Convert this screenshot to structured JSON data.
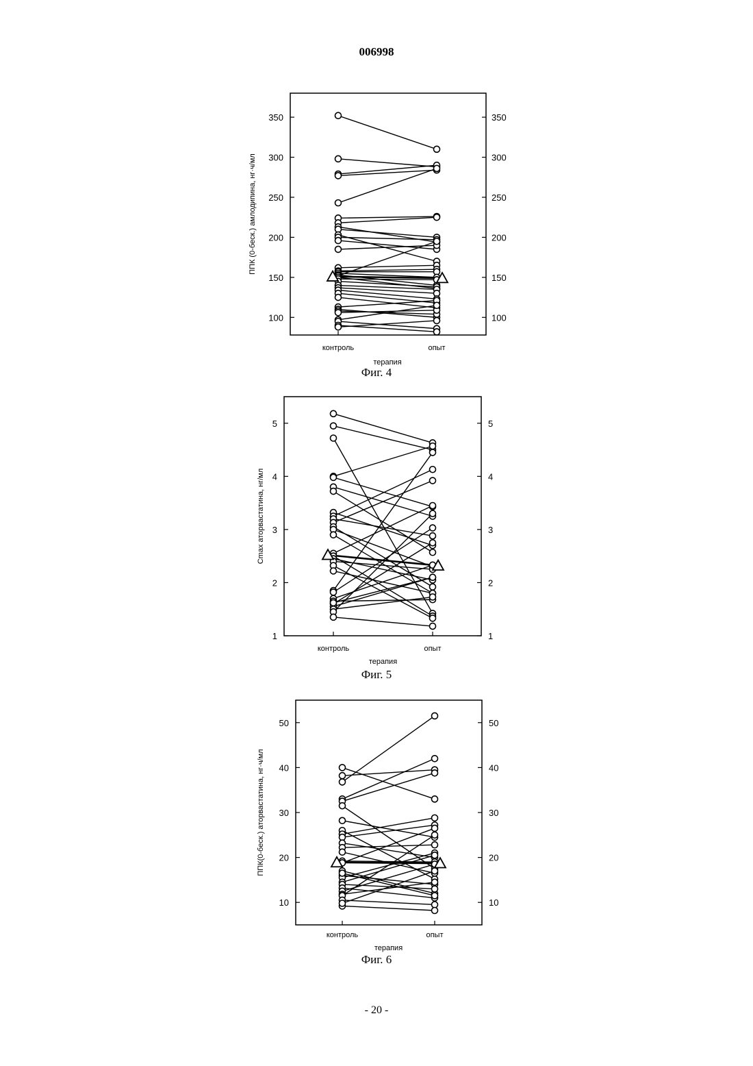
{
  "header": {
    "doc_number": "006998"
  },
  "footer": {
    "page_label": "- 20 -"
  },
  "figures": [
    {
      "caption": "Фиг. 4"
    },
    {
      "caption": "Фиг. 5"
    },
    {
      "caption": "Фиг. 6"
    }
  ],
  "chart_data": [
    {
      "type": "line",
      "title": "",
      "xlabel": "терапия",
      "ylabel": "ППК (0-беск.) амлодипина, нг·ч/мл",
      "categories": [
        "контроль",
        "опыт"
      ],
      "ylim": [
        78,
        380
      ],
      "yticks": [
        100,
        150,
        200,
        250,
        300,
        350
      ],
      "grid": false,
      "series_style": "paired individual lines with circle markers; group mean shown with triangle markers",
      "pairs": [
        [
          352,
          310
        ],
        [
          298,
          288
        ],
        [
          279,
          290
        ],
        [
          277,
          284
        ],
        [
          243,
          286
        ],
        [
          224,
          226
        ],
        [
          218,
          225
        ],
        [
          213,
          194
        ],
        [
          210,
          200
        ],
        [
          203,
          170
        ],
        [
          200,
          197
        ],
        [
          196,
          185
        ],
        [
          185,
          190
        ],
        [
          162,
          165
        ],
        [
          158,
          160
        ],
        [
          157,
          157
        ],
        [
          155,
          150
        ],
        [
          153,
          140
        ],
        [
          152,
          195
        ],
        [
          150,
          136
        ],
        [
          148,
          147
        ],
        [
          145,
          138
        ],
        [
          140,
          135
        ],
        [
          137,
          130
        ],
        [
          134,
          123
        ],
        [
          130,
          118
        ],
        [
          125,
          112
        ],
        [
          113,
          121
        ],
        [
          110,
          100
        ],
        [
          108,
          104
        ],
        [
          106,
          109
        ],
        [
          97,
          115
        ],
        [
          95,
          86
        ],
        [
          90,
          82
        ],
        [
          88,
          96
        ]
      ],
      "mean": [
        151,
        149
      ]
    },
    {
      "type": "line",
      "title": "",
      "xlabel": "терапия",
      "ylabel": "Cmax аторвастатина, нг/мл",
      "categories": [
        "контроль",
        "опыт"
      ],
      "ylim": [
        1,
        5.5
      ],
      "yticks": [
        1,
        2,
        3,
        4,
        5
      ],
      "grid": false,
      "series_style": "paired individual lines with circle markers; group mean shown with triangle markers",
      "pairs": [
        [
          5.18,
          4.63
        ],
        [
          4.95,
          4.5
        ],
        [
          4.72,
          1.42
        ],
        [
          4.0,
          4.57
        ],
        [
          3.98,
          3.43
        ],
        [
          3.8,
          3.25
        ],
        [
          3.72,
          2.57
        ],
        [
          3.32,
          2.7
        ],
        [
          3.25,
          4.13
        ],
        [
          3.2,
          2.88
        ],
        [
          3.13,
          3.92
        ],
        [
          3.05,
          1.92
        ],
        [
          3.0,
          2.3
        ],
        [
          2.9,
          1.8
        ],
        [
          2.55,
          3.45
        ],
        [
          2.5,
          1.37
        ],
        [
          2.45,
          2.05
        ],
        [
          2.4,
          2.25
        ],
        [
          2.32,
          1.33
        ],
        [
          2.22,
          1.8
        ],
        [
          1.85,
          4.45
        ],
        [
          1.82,
          3.03
        ],
        [
          1.7,
          2.33
        ],
        [
          1.65,
          1.68
        ],
        [
          1.6,
          2.75
        ],
        [
          1.55,
          2.1
        ],
        [
          1.5,
          1.73
        ],
        [
          1.45,
          3.3
        ],
        [
          1.35,
          1.18
        ],
        [
          1.62,
          2.1
        ]
      ],
      "mean": [
        2.52,
        2.32
      ]
    },
    {
      "type": "line",
      "title": "",
      "xlabel": "терапия",
      "ylabel": "ППК(0-беск.) аторвастатина, нг·ч/мл",
      "categories": [
        "контроль",
        "опыт"
      ],
      "ylim": [
        5,
        55
      ],
      "yticks": [
        10,
        20,
        30,
        40,
        50
      ],
      "grid": false,
      "series_style": "paired individual lines with circle markers; group mean shown with triangle markers",
      "pairs": [
        [
          40.0,
          33.0
        ],
        [
          38.2,
          39.5
        ],
        [
          36.8,
          51.5
        ],
        [
          33.0,
          42.0
        ],
        [
          32.5,
          38.8
        ],
        [
          31.5,
          17.5
        ],
        [
          28.2,
          24.5
        ],
        [
          26.0,
          15.2
        ],
        [
          25.2,
          28.8
        ],
        [
          24.5,
          27.2
        ],
        [
          23.2,
          20.0
        ],
        [
          22.2,
          22.8
        ],
        [
          21.2,
          16.5
        ],
        [
          19.2,
          19.0
        ],
        [
          18.8,
          26.5
        ],
        [
          17.0,
          12.0
        ],
        [
          16.0,
          14.0
        ],
        [
          15.5,
          21.0
        ],
        [
          14.5,
          20.5
        ],
        [
          14.0,
          13.0
        ],
        [
          13.2,
          11.0
        ],
        [
          12.5,
          18.5
        ],
        [
          11.8,
          14.5
        ],
        [
          11.5,
          25.0
        ],
        [
          10.5,
          9.5
        ],
        [
          9.2,
          8.2
        ],
        [
          9.8,
          17.0
        ],
        [
          16.5,
          11.5
        ]
      ],
      "mean": [
        18.9,
        18.7
      ]
    }
  ]
}
